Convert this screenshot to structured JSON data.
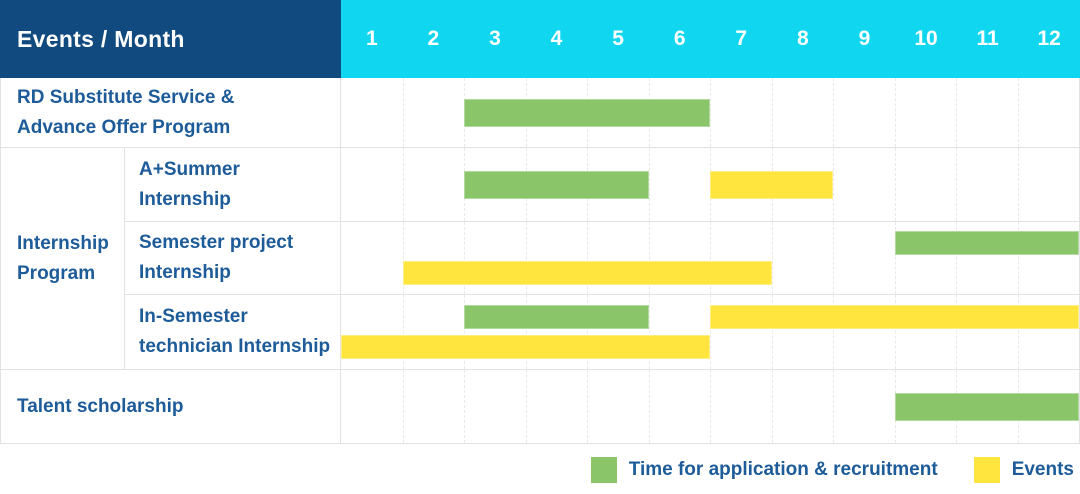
{
  "colors": {
    "header_bg": "#114a7f",
    "months_bg": "#10d7ef",
    "label_text": "#1d5b99",
    "header_text": "#ffffff",
    "bar_green": "#8ac56a",
    "bar_yellow": "#ffe53e",
    "gridline": "#e9e9e9",
    "row_border": "#e2e2e2"
  },
  "header": {
    "title": "Events / Month"
  },
  "chart_data": {
    "type": "gantt",
    "title": "Events / Month",
    "x_axis": {
      "unit": "month",
      "ticks": [
        "1",
        "2",
        "3",
        "4",
        "5",
        "6",
        "7",
        "8",
        "9",
        "10",
        "11",
        "12"
      ],
      "range": [
        1,
        13
      ],
      "gridlines": "dashed vertical at each month boundary"
    },
    "bar_span_convention": "start inclusive, end exclusive, month units (e.g. start 3 end 7 covers months 3-6)",
    "legend": [
      {
        "key": "application",
        "label": "Time for application & recruitment",
        "color": "#8ac56a"
      },
      {
        "key": "event",
        "label": "Events",
        "color": "#ffe53e"
      }
    ],
    "group": {
      "label": "Internship\nProgram"
    },
    "rows": [
      {
        "id": "rd-substitute",
        "label": "RD Substitute Service &\nAdvance Offer Program",
        "group": null,
        "lines": [
          [
            {
              "type": "application",
              "start": 3,
              "end": 7
            }
          ]
        ]
      },
      {
        "id": "a-plus-summer",
        "label": "A+Summer\nInternship",
        "group": "Internship Program",
        "lines": [
          [
            {
              "type": "application",
              "start": 3,
              "end": 6
            },
            {
              "type": "event",
              "start": 7,
              "end": 9
            }
          ]
        ]
      },
      {
        "id": "semester-project",
        "label": "Semester project\nInternship",
        "group": "Internship Program",
        "lines": [
          [
            {
              "type": "application",
              "start": 10,
              "end": 13
            }
          ],
          [
            {
              "type": "event",
              "start": 2,
              "end": 8
            }
          ]
        ]
      },
      {
        "id": "in-semester-technician",
        "label": "In-Semester\ntechnician Internship",
        "group": "Internship Program",
        "lines": [
          [
            {
              "type": "application",
              "start": 3,
              "end": 6
            },
            {
              "type": "event",
              "start": 7,
              "end": 13
            }
          ],
          [
            {
              "type": "event",
              "start": 1,
              "end": 7
            }
          ]
        ]
      },
      {
        "id": "talent-scholarship",
        "label": "Talent scholarship",
        "group": null,
        "lines": [
          [
            {
              "type": "application",
              "start": 10,
              "end": 13
            }
          ]
        ]
      }
    ]
  }
}
